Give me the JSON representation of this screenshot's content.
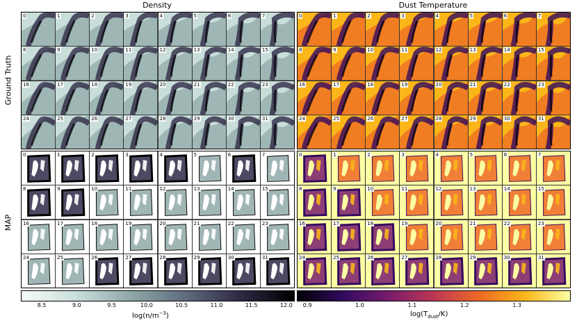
{
  "titles": {
    "density": "Density",
    "dust": "Dust Temperature"
  },
  "row_labels": {
    "truth": "Ground Truth",
    "map": "MAP"
  },
  "tile_numbers": [
    "0",
    "1",
    "2",
    "3",
    "4",
    "5",
    "6",
    "7",
    "8",
    "9",
    "10",
    "11",
    "12",
    "13",
    "14",
    "15",
    "16",
    "17",
    "18",
    "19",
    "20",
    "21",
    "22",
    "23",
    "24",
    "25",
    "26",
    "27",
    "28",
    "29",
    "30",
    "31"
  ],
  "colorbars": {
    "density": {
      "ticks": [
        "8.5",
        "9.0",
        "9.5",
        "10.0",
        "10.5",
        "11.0",
        "11.5",
        "12.0"
      ],
      "tick_values": [
        8.5,
        9.0,
        9.5,
        10.0,
        10.5,
        11.0,
        11.5,
        12.0
      ],
      "range": [
        8.2,
        12.1
      ],
      "label_pre": "log(n/m",
      "label_sup": "−3",
      "label_post": ")",
      "colors": [
        "#f6fbfa",
        "#c9dedb",
        "#8fa9a8",
        "#5f6c80",
        "#2f2946",
        "#000000"
      ]
    },
    "dust": {
      "ticks": [
        "0.9",
        "1.0",
        "1.1",
        "1.2",
        "1.3"
      ],
      "tick_values": [
        0.9,
        1.0,
        1.1,
        1.2,
        1.3
      ],
      "range": [
        0.88,
        1.4
      ],
      "label_pre": "log(T",
      "label_sub": "dust",
      "label_post": "/K)",
      "colors": [
        "#000004",
        "#320a5e",
        "#781c6d",
        "#bc3754",
        "#ed6925",
        "#fbb61a",
        "#fcffa4"
      ]
    }
  }
}
